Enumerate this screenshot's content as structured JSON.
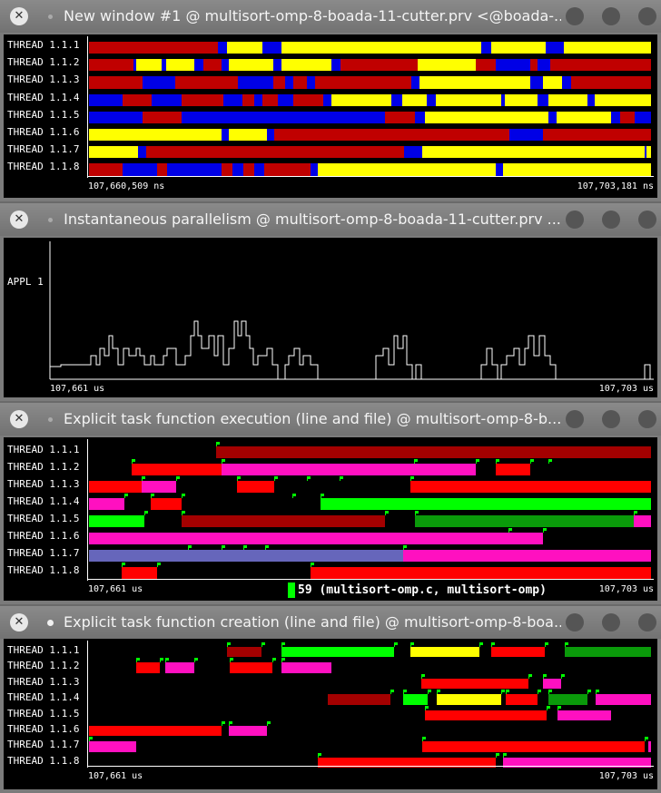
{
  "windows": [
    {
      "title": "New window #1 @ multisort-omp-8-boada-11-cutter.prv <@boada-...",
      "rows": [
        "THREAD 1.1.1",
        "THREAD 1.1.2",
        "THREAD 1.1.3",
        "THREAD 1.1.4",
        "THREAD 1.1.5",
        "THREAD 1.1.6",
        "THREAD 1.1.7",
        "THREAD 1.1.8"
      ],
      "time_start": "107,660,509 ns",
      "time_end": "107,703,181 ns"
    },
    {
      "title": "Instantaneous parallelism @ multisort-omp-8-boada-11-cutter.prv ...",
      "rows": [
        "APPL 1"
      ],
      "time_start": "107,661 us",
      "time_end": "107,703 us"
    },
    {
      "title": "Explicit task function execution (line and file) @ multisort-omp-8-b...",
      "rows": [
        "THREAD 1.1.1",
        "THREAD 1.1.2",
        "THREAD 1.1.3",
        "THREAD 1.1.4",
        "THREAD 1.1.5",
        "THREAD 1.1.6",
        "THREAD 1.1.7",
        "THREAD 1.1.8"
      ],
      "time_start": "107,661 us",
      "time_end": "107,703 us",
      "legend": "59 (multisort-omp.c, multisort-omp)"
    },
    {
      "title": "Explicit task function creation (line and file) @ multisort-omp-8-boa...",
      "rows": [
        "THREAD 1.1.1",
        "THREAD 1.1.2",
        "THREAD 1.1.3",
        "THREAD 1.1.4",
        "THREAD 1.1.5",
        "THREAD 1.1.6",
        "THREAD 1.1.7",
        "THREAD 1.1.8"
      ],
      "time_start": "107,661 us",
      "time_end": "107,703 us"
    }
  ],
  "colors": {
    "red": "#c00000",
    "darkred": "#a40000",
    "blue": "#0000e6",
    "yellow": "#ffff00",
    "pink": "#ff10c0",
    "green": "#00ff00",
    "darkgreen": "#0a9a0a",
    "brightred": "#ff0000",
    "purple": "#6666bb"
  }
}
